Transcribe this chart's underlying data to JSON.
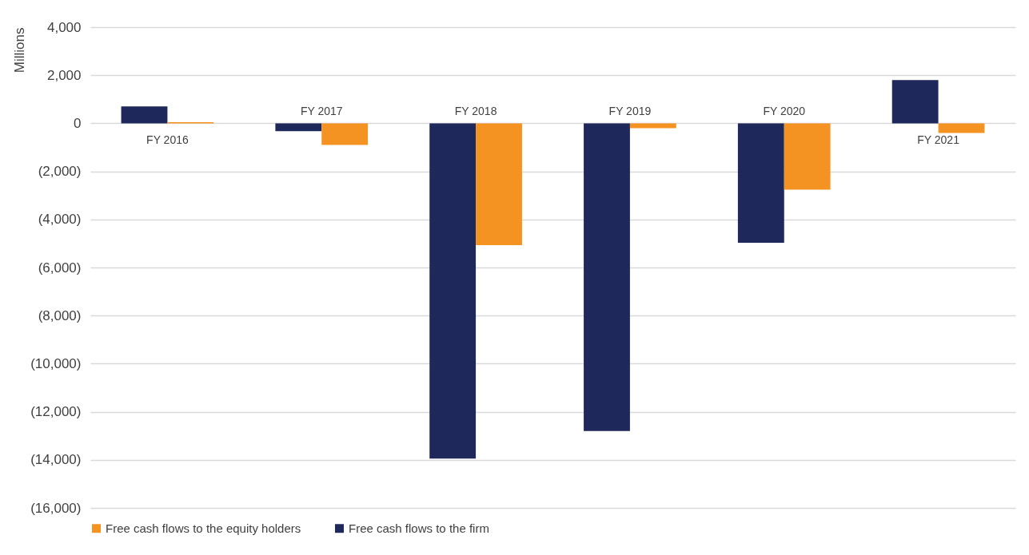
{
  "chart_data": {
    "type": "bar",
    "ylabel": "Millions",
    "categories": [
      "FY 2016",
      "FY 2017",
      "FY 2018",
      "FY 2019",
      "FY 2020",
      "FY 2021"
    ],
    "series": [
      {
        "name": "Free cash flows to the firm",
        "color": "#1f285a",
        "values": [
          700,
          -330,
          -13950,
          -12800,
          -4970,
          1800
        ]
      },
      {
        "name": "Free cash flows to the equity holders",
        "color": "#f59322",
        "values": [
          50,
          -900,
          -5070,
          -200,
          -2760,
          -400
        ]
      }
    ],
    "ylim": [
      -16000,
      4000
    ],
    "yticks": [
      {
        "value": 4000,
        "label": "4,000"
      },
      {
        "value": 2000,
        "label": "2,000"
      },
      0,
      {
        "value": -2000,
        "label": "(2,000)"
      },
      {
        "value": -4000,
        "label": "(4,000)"
      },
      {
        "value": -6000,
        "label": "(6,000)"
      },
      {
        "value": -8000,
        "label": "(8,000)"
      },
      {
        "value": -10000,
        "label": "(10,000)"
      },
      {
        "value": -12000,
        "label": "(12,000)"
      },
      {
        "value": -14000,
        "label": "(14,000)"
      },
      {
        "value": -16000,
        "label": "(16,000)"
      }
    ],
    "grid": "y",
    "legend": "bottom"
  }
}
